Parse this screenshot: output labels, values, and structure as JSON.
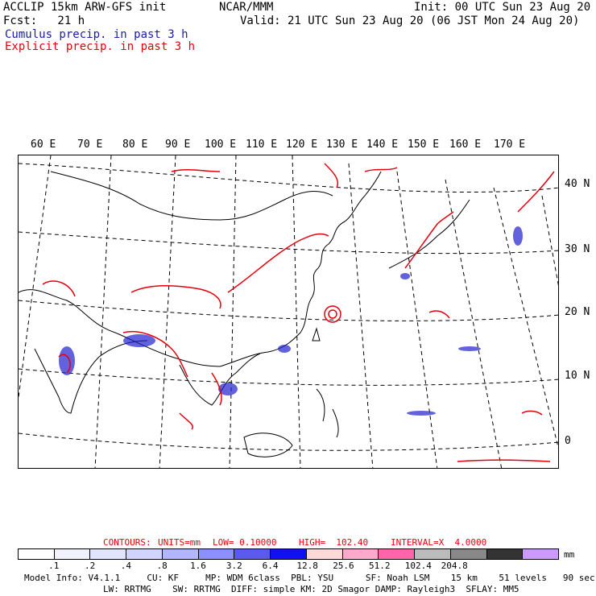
{
  "header": {
    "line1_left": "ACCLIP 15km ARW-GFS init",
    "line1_center": "NCAR/MMM",
    "line1_right": "Init: 00 UTC Sun 23 Aug 20",
    "line2_left": "Fcst:   21 h",
    "line2_right": "Valid: 21 UTC Sun 23 Aug 20 (06 JST Mon 24 Aug 20)",
    "legend_cumulus": "Cumulus precip. in past 3 h",
    "legend_explicit": "Explicit precip. in past 3 h"
  },
  "map": {
    "lon_labels": [
      "60 E",
      "70 E",
      "80 E",
      "90 E",
      "100 E",
      "110 E",
      "120 E",
      "130 E",
      "140 E",
      "150 E",
      "160 E",
      "170 E"
    ],
    "lat_labels": [
      "40 N",
      "30 N",
      "20 N",
      "10 N",
      "0"
    ],
    "colors": {
      "cumulus": "#2020d0",
      "explicit": "#e4000d",
      "coast": "#000000"
    }
  },
  "contours": {
    "prefix": "CONTOURS:",
    "units": "UNITS=mm",
    "low": "LOW= 0.10000",
    "high": "HIGH=  102.40",
    "interval": "INTERVAL=X  4.0000"
  },
  "colorbar": {
    "colors": [
      "#ffffff",
      "#f2f2ff",
      "#e3e5ff",
      "#d0d4ff",
      "#b2b6ff",
      "#8c90ff",
      "#5a5af0",
      "#1010f0",
      "#ffd8d8",
      "#ffaacc",
      "#ff66aa",
      "#bbbbbb",
      "#888888",
      "#333333",
      "#cc99ff"
    ],
    "ticks": [
      ".1",
      ".2",
      ".4",
      ".8",
      "1.6",
      "3.2",
      "6.4",
      "12.8",
      "25.6",
      "51.2",
      "102.4",
      "204.8"
    ],
    "unit": "mm"
  },
  "footer": {
    "line1": "Model Info: V4.1.1     CU: KF     MP: WDM 6class  PBL: YSU      SF: Noah LSM    15 km    51 levels   90 sec",
    "line2": "LW: RRTMG    SW: RRTMG  DIFF: simple KM: 2D Smagor DAMP: Rayleigh3  SFLAY: MM5"
  }
}
